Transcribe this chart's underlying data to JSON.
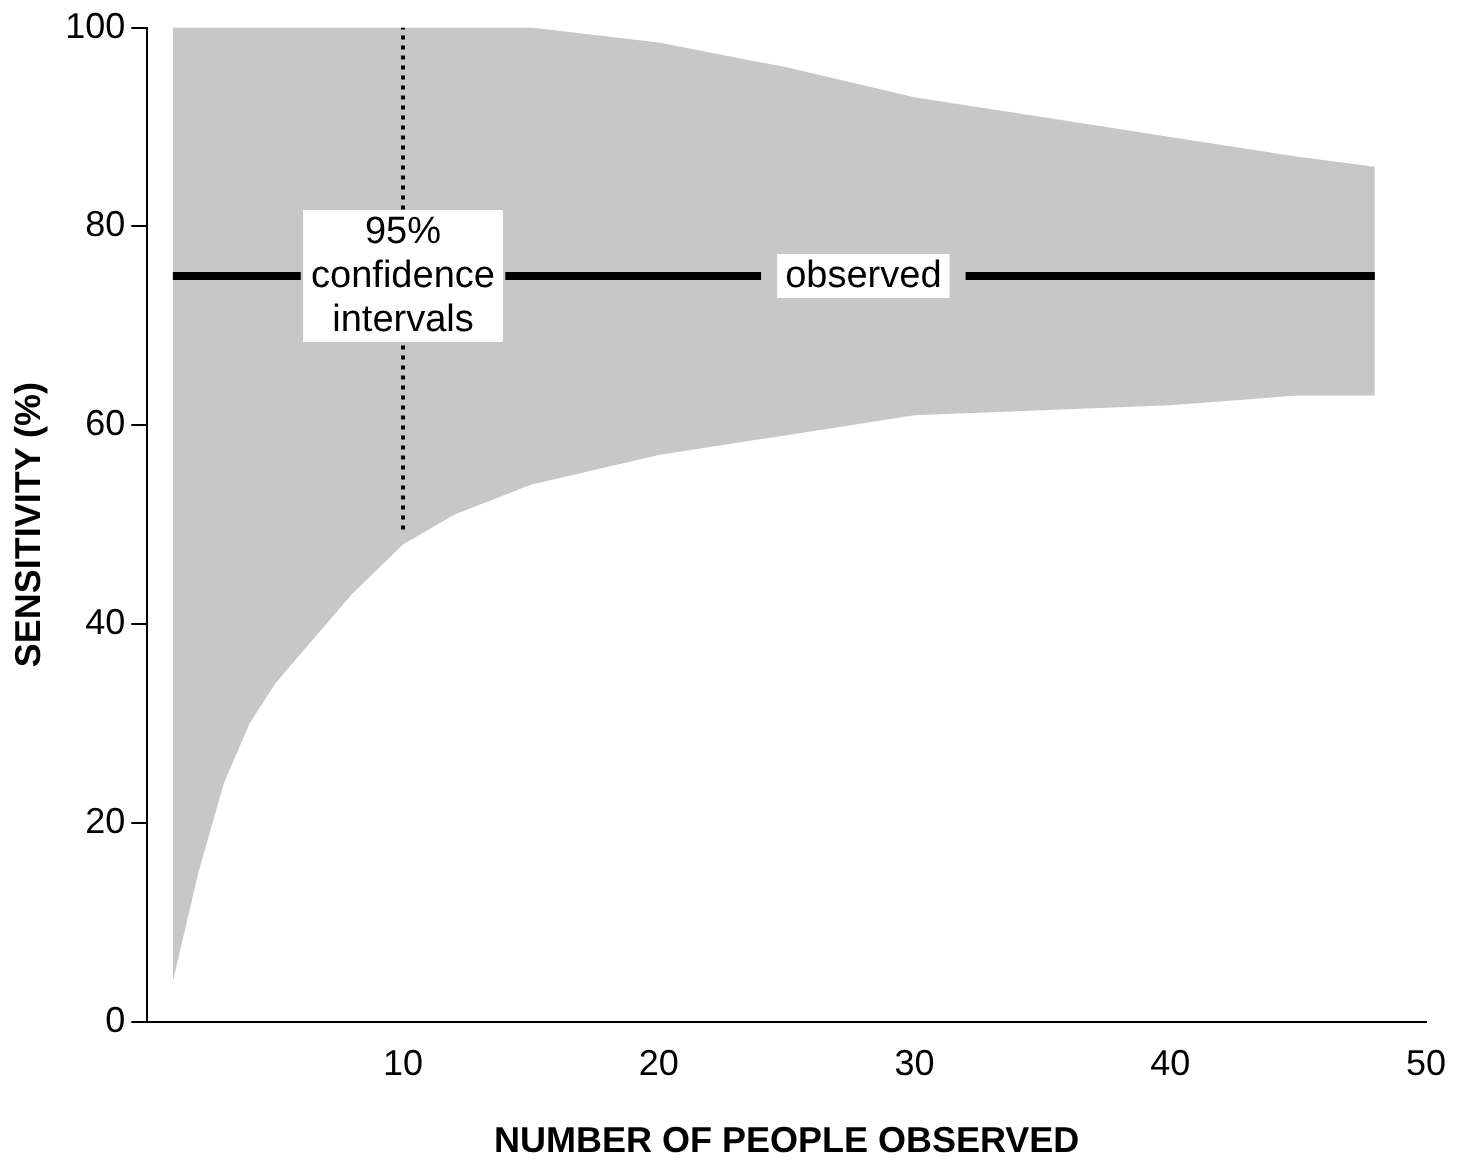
{
  "chart_data": {
    "type": "line",
    "xlabel": "NUMBER OF PEOPLE OBSERVED",
    "ylabel": "SENSITIVITY (%)",
    "x": [
      1,
      2,
      3,
      4,
      5,
      6,
      8,
      10,
      12,
      14,
      15,
      20,
      24,
      25,
      30,
      32,
      35,
      40,
      45,
      48
    ],
    "series": [
      {
        "color": "#000000",
        "values": [
          75,
          75,
          75,
          75,
          75,
          75,
          null,
          null,
          null,
          75,
          75,
          75,
          75,
          null,
          null,
          75,
          75,
          75,
          75,
          75
        ],
        "lower": [
          4,
          15,
          24,
          30,
          34,
          37,
          43,
          48,
          51,
          53,
          54,
          57,
          58.6,
          59,
          61,
          61.2,
          61.5,
          62,
          63,
          63
        ],
        "upper": [
          100,
          100,
          100,
          100,
          100,
          100,
          100,
          100,
          100,
          100,
          100,
          98.5,
          96.5,
          96,
          93,
          92.2,
          91,
          89,
          87,
          86
        ]
      },
      {
        "color": "#000000",
        "x": [
          10,
          10
        ],
        "values": [
          49.5,
          100
        ],
        "line_style": "dotted"
      }
    ],
    "annotations": [
      {
        "text": "95%\nconfidence\nintervals",
        "x": 10,
        "y": 75
      },
      "observed"
    ],
    "xlim": [
      0,
      50
    ],
    "ylim": [
      0,
      100
    ],
    "xticks": [
      10,
      20,
      30,
      40,
      50
    ],
    "yticks": [
      0,
      20,
      40,
      60,
      80,
      100
    ],
    "grid": false,
    "legend": false,
    "marker": "none"
  }
}
